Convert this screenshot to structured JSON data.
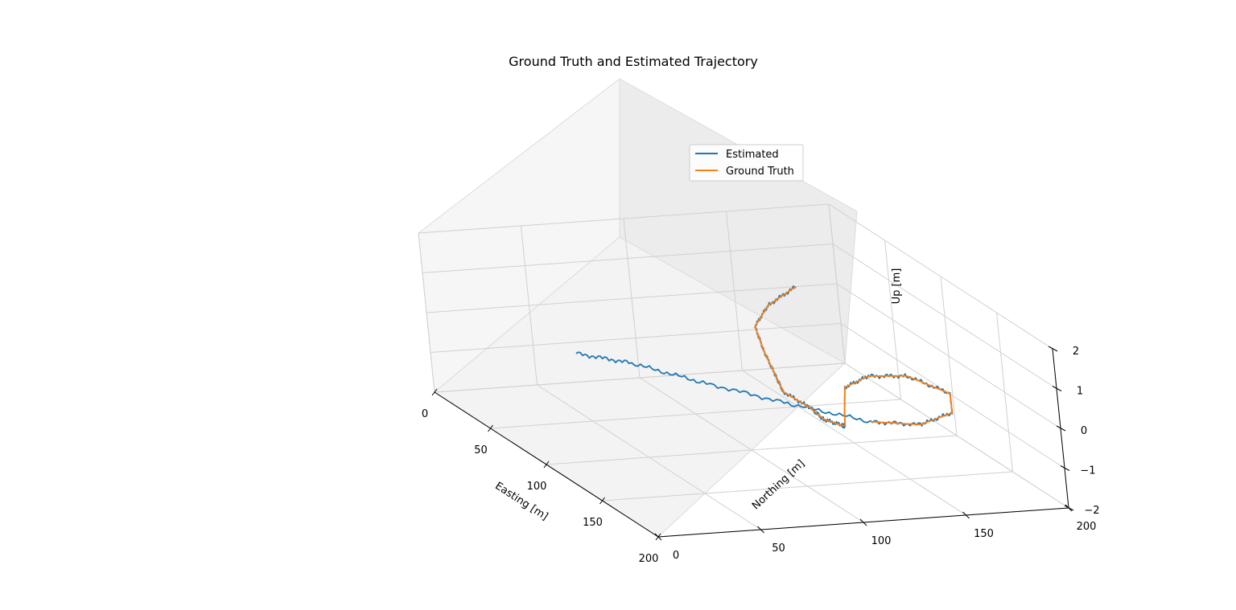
{
  "chart_data": {
    "type": "line",
    "title": "Ground Truth and Estimated Trajectory",
    "xlabel": "Easting [m]",
    "ylabel": "Northing [m]",
    "zlabel": "Up [m]",
    "xlim": [
      0,
      200
    ],
    "ylim": [
      0,
      200
    ],
    "zlim": [
      -2,
      2
    ],
    "x_ticks": [
      "0",
      "50",
      "100",
      "150",
      "200"
    ],
    "y_ticks": [
      "0",
      "50",
      "100",
      "150",
      "200"
    ],
    "z_ticks": [
      "−2",
      "−1",
      "0",
      "1",
      "2"
    ],
    "grid": true,
    "legend_position": "upper-right",
    "colors": {
      "estimated": "#1f77b4",
      "ground_truth": "#ff7f0e"
    },
    "series": [
      {
        "name": "Estimated",
        "x": [
          0,
          21,
          46,
          78,
          108,
          130,
          153,
          168,
          177,
          178,
          161,
          130,
          118,
          121,
          147,
          171,
          183,
          175,
          145,
          110,
          80,
          64
        ],
        "y": [
          180,
          155,
          135,
          122,
          111,
          103,
          104,
          102,
          106,
          107,
          116,
          133,
          151,
          168,
          175,
          163,
          141,
          121,
          97,
          73,
          55,
          38
        ],
        "z": [
          0,
          0,
          0,
          0,
          0,
          0,
          0,
          0,
          0,
          0,
          0,
          0,
          0,
          0,
          0,
          0,
          0,
          0,
          0,
          0,
          0,
          0
        ]
      },
      {
        "name": "Ground Truth",
        "x": [
          0,
          21,
          46,
          78,
          108,
          130,
          153,
          168,
          177,
          178,
          161,
          130,
          118,
          121,
          147,
          171,
          183,
          175
        ],
        "y": [
          180,
          155,
          135,
          122,
          111,
          103,
          104,
          102,
          106,
          107,
          116,
          133,
          151,
          168,
          175,
          163,
          141,
          121
        ],
        "z": [
          0,
          0,
          0,
          0,
          0,
          0,
          0,
          0,
          0,
          0,
          0,
          0,
          0,
          0,
          0,
          0,
          0,
          0
        ]
      }
    ]
  }
}
